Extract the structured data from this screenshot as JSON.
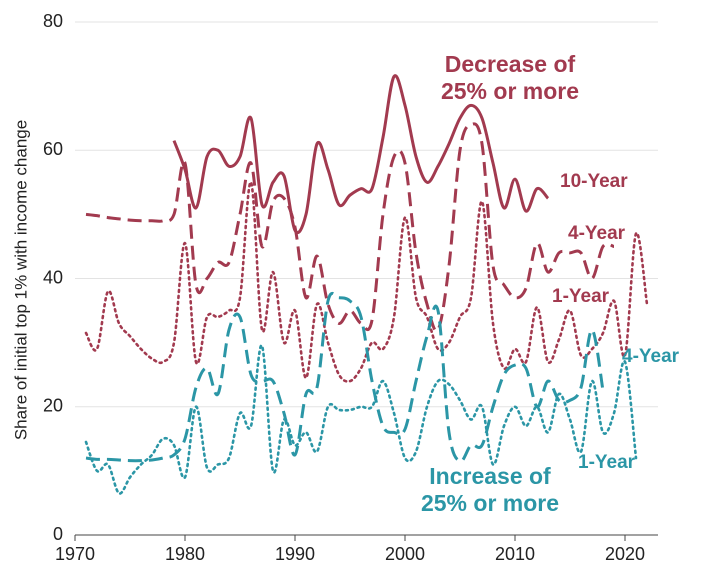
{
  "chart_data": {
    "type": "line",
    "y_label": "Share of initial top 1% with income change",
    "annotations": [
      [
        "Decrease of",
        "25% or more"
      ],
      [
        "Increase of",
        "25% or more"
      ]
    ],
    "x": [
      1971,
      1972,
      1973,
      1974,
      1975,
      1976,
      1977,
      1978,
      1979,
      1980,
      1981,
      1982,
      1983,
      1984,
      1985,
      1986,
      1987,
      1988,
      1989,
      1990,
      1991,
      1992,
      1993,
      1994,
      1995,
      1996,
      1997,
      1998,
      1999,
      2000,
      2001,
      2002,
      2003,
      2004,
      2005,
      2006,
      2007,
      2008,
      2009,
      2010,
      2011,
      2012,
      2013,
      2014,
      2015,
      2016,
      2017,
      2018,
      2019,
      2020,
      2021,
      2022
    ],
    "series": [
      {
        "name": "10-Year",
        "color": "#a23a4f",
        "style": "solid",
        "values": [
          null,
          null,
          null,
          null,
          null,
          null,
          null,
          null,
          61.5,
          57,
          51,
          59,
          60,
          57.5,
          59,
          65,
          51.5,
          55,
          56,
          47.5,
          50,
          61,
          57,
          51.5,
          53,
          54,
          54,
          62,
          71.5,
          67,
          59,
          55,
          57.5,
          61,
          65,
          67,
          65,
          58,
          51,
          55.5,
          50.5,
          54,
          52.5,
          null,
          null,
          null,
          null,
          null,
          null,
          null,
          null,
          null
        ]
      },
      {
        "name": "4-Year",
        "color": "#a23a4f",
        "style": "dashed",
        "values": [
          50,
          49.8,
          49.5,
          49.3,
          49.1,
          49,
          49,
          49,
          50,
          58,
          39,
          40,
          42.5,
          42.5,
          50,
          58,
          45,
          52,
          52.5,
          48,
          37,
          43.5,
          36,
          33,
          35,
          33,
          33.5,
          50,
          59,
          58,
          44,
          36,
          32,
          42,
          60,
          64,
          61,
          42,
          39,
          37,
          38.5,
          45.5,
          41,
          44,
          44,
          44,
          40,
          45,
          45,
          null,
          null,
          null
        ]
      },
      {
        "name": "1-Year",
        "color": "#a23a4f",
        "style": "dotted",
        "values": [
          31.5,
          29,
          38,
          33,
          31,
          29,
          27.5,
          27,
          30,
          45.5,
          27,
          34,
          34,
          35,
          37,
          55,
          32,
          41,
          30,
          35,
          24.5,
          36,
          30,
          25,
          24,
          26,
          30,
          29,
          34,
          49.5,
          37,
          34,
          29,
          30,
          34,
          37,
          52,
          33,
          26,
          29,
          27,
          35.5,
          27,
          30.5,
          35,
          28,
          29,
          31.5,
          36.5,
          28,
          47,
          36
        ]
      },
      {
        "name": "4-Year",
        "color": "#2b96a6",
        "style": "dashed",
        "values": [
          12,
          11.8,
          11.8,
          11.7,
          11.6,
          11.6,
          11.7,
          12,
          12.5,
          15,
          23,
          26,
          22,
          32,
          34,
          25,
          24,
          24,
          19,
          12.5,
          22,
          23,
          36.5,
          37,
          36.5,
          34,
          24,
          17,
          16,
          16.5,
          24,
          31,
          35,
          16,
          11.5,
          14,
          14,
          20,
          25,
          26.5,
          26,
          20,
          24,
          21,
          21,
          23,
          32,
          22.5,
          null,
          null,
          null,
          null
        ]
      },
      {
        "name": "1-Year",
        "color": "#2b96a6",
        "style": "dotted",
        "values": [
          14.5,
          10,
          11,
          6.5,
          9,
          11,
          12.5,
          15,
          14,
          9,
          20,
          10.5,
          11,
          12,
          19,
          17,
          29.5,
          10,
          18,
          14,
          16,
          13,
          20,
          19.5,
          19.5,
          20,
          20,
          24,
          19,
          12,
          13,
          20,
          24,
          23.5,
          21,
          18,
          20,
          11,
          17,
          20,
          17,
          20,
          16,
          22,
          18,
          13,
          24,
          16,
          19,
          27,
          12,
          null
        ]
      }
    ],
    "xlim": [
      1970,
      2023
    ],
    "xticks": [
      1970,
      1980,
      1990,
      2000,
      2010,
      2020
    ],
    "ylim": [
      0,
      80
    ],
    "yticks": [
      0,
      20,
      40,
      60,
      80
    ],
    "grid": true
  }
}
